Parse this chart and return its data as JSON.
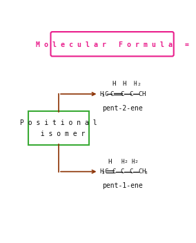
{
  "bg_color": "#ffffff",
  "title_text": "M o l e c u l a r   F o r m u l a   =",
  "title_color": "#e91e8c",
  "title_box_color": "#e91e8c",
  "title_box_facecolor": "#ffffff",
  "positional_text": "P o s i t i o n a l\n  i s o m e r",
  "positional_box_color": "#3aaa35",
  "arrow_color": "#8B3000",
  "mol1_label": "pent-2-ene",
  "mol2_label": "pent-1-ene",
  "text_color": "#111111",
  "font_family": "monospace"
}
